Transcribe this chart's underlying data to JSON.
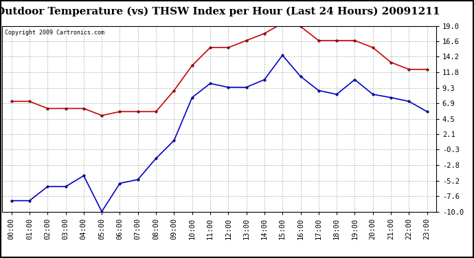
{
  "title": "Outdoor Temperature (vs) THSW Index per Hour (Last 24 Hours) 20091211",
  "copyright": "Copyright 2009 Cartronics.com",
  "hours": [
    "00:00",
    "01:00",
    "02:00",
    "03:00",
    "04:00",
    "05:00",
    "06:00",
    "07:00",
    "08:00",
    "09:00",
    "10:00",
    "11:00",
    "12:00",
    "13:00",
    "14:00",
    "15:00",
    "16:00",
    "17:00",
    "18:00",
    "19:00",
    "20:00",
    "21:00",
    "22:00",
    "23:00"
  ],
  "temp": [
    -8.3,
    -8.3,
    -6.1,
    -6.1,
    -4.4,
    -10.0,
    -5.6,
    -5.0,
    -1.7,
    1.1,
    7.8,
    10.0,
    9.4,
    9.4,
    10.6,
    14.4,
    11.1,
    8.9,
    8.3,
    10.6,
    8.3,
    7.8,
    7.2,
    5.6
  ],
  "thsw": [
    7.2,
    7.2,
    6.1,
    6.1,
    6.1,
    5.0,
    5.6,
    5.6,
    5.6,
    8.9,
    12.8,
    15.6,
    15.6,
    16.7,
    17.8,
    19.4,
    18.9,
    16.7,
    16.7,
    16.7,
    15.6,
    13.3,
    12.2,
    12.2
  ],
  "ylim_min": -10.0,
  "ylim_max": 19.0,
  "yticks": [
    -10.0,
    -7.6,
    -5.2,
    -2.8,
    -0.3,
    2.1,
    4.5,
    6.9,
    9.3,
    11.8,
    14.2,
    16.6,
    19.0
  ],
  "temp_color": "#0000cc",
  "thsw_color": "#cc0000",
  "bg_color": "#ffffff",
  "grid_color": "#aaaaaa",
  "title_fontsize": 11,
  "tick_fontsize": 7.5,
  "copyright_fontsize": 6
}
